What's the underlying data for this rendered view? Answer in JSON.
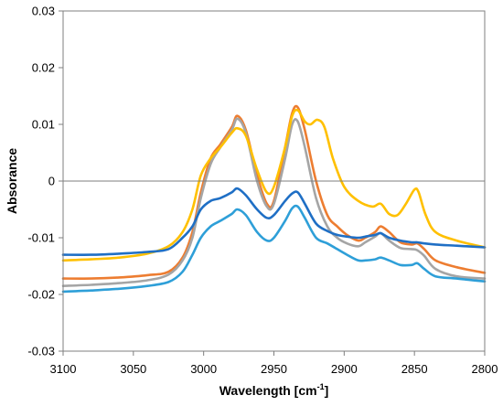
{
  "chart_data": {
    "type": "line",
    "xlabel": "Wavelength [cm",
    "xlabel_sup": "-1",
    "xlabel_end": "]",
    "ylabel": "Absorance",
    "xlim": [
      3100,
      2800
    ],
    "ylim": [
      -0.03,
      0.03
    ],
    "x_ticks": [
      3100,
      3050,
      3000,
      2950,
      2900,
      2850,
      2800
    ],
    "x_tick_labels": [
      "3100",
      "3050",
      "3000",
      "2950",
      "2900",
      "2850",
      "2800"
    ],
    "y_ticks": [
      0.03,
      0.02,
      0.01,
      0,
      -0.01,
      -0.02,
      -0.03
    ],
    "y_tick_labels": [
      "0.03",
      "0.02",
      "0.01",
      "0",
      "-0.01",
      "-0.02",
      "-0.03"
    ],
    "x_axis_reversed": true,
    "grid": false,
    "legend": "none",
    "series": [
      {
        "color": "#ED7D31",
        "points": [
          [
            3100,
            -0.0172
          ],
          [
            3080,
            -0.0172
          ],
          [
            3060,
            -0.017
          ],
          [
            3040,
            -0.0166
          ],
          [
            3025,
            -0.016
          ],
          [
            3015,
            -0.0135
          ],
          [
            3008,
            -0.009
          ],
          [
            3002,
            -0.002
          ],
          [
            2995,
            0.004
          ],
          [
            2988,
            0.0065
          ],
          [
            2980,
            0.0095
          ],
          [
            2976,
            0.0115
          ],
          [
            2970,
            0.009
          ],
          [
            2962,
            0.001
          ],
          [
            2955,
            -0.004
          ],
          [
            2950,
            -0.0035
          ],
          [
            2942,
            0.006
          ],
          [
            2937,
            0.012
          ],
          [
            2933,
            0.013
          ],
          [
            2928,
            0.009
          ],
          [
            2920,
            0.0
          ],
          [
            2912,
            -0.006
          ],
          [
            2905,
            -0.008
          ],
          [
            2898,
            -0.0095
          ],
          [
            2890,
            -0.0105
          ],
          [
            2885,
            -0.01
          ],
          [
            2878,
            -0.009
          ],
          [
            2874,
            -0.008
          ],
          [
            2868,
            -0.009
          ],
          [
            2860,
            -0.0108
          ],
          [
            2852,
            -0.0112
          ],
          [
            2848,
            -0.011
          ],
          [
            2843,
            -0.012
          ],
          [
            2835,
            -0.014
          ],
          [
            2820,
            -0.0152
          ],
          [
            2800,
            -0.0162
          ]
        ]
      },
      {
        "color": "#A5A5A5",
        "points": [
          [
            3100,
            -0.0185
          ],
          [
            3080,
            -0.0183
          ],
          [
            3060,
            -0.018
          ],
          [
            3040,
            -0.0175
          ],
          [
            3025,
            -0.0165
          ],
          [
            3015,
            -0.014
          ],
          [
            3008,
            -0.01
          ],
          [
            3002,
            -0.003
          ],
          [
            2995,
            0.003
          ],
          [
            2988,
            0.006
          ],
          [
            2980,
            0.009
          ],
          [
            2976,
            0.011
          ],
          [
            2970,
            0.0085
          ],
          [
            2962,
            0.0
          ],
          [
            2955,
            -0.0045
          ],
          [
            2950,
            -0.004
          ],
          [
            2942,
            0.004
          ],
          [
            2937,
            0.01
          ],
          [
            2933,
            0.0105
          ],
          [
            2928,
            0.006
          ],
          [
            2920,
            -0.003
          ],
          [
            2912,
            -0.008
          ],
          [
            2905,
            -0.01
          ],
          [
            2898,
            -0.011
          ],
          [
            2890,
            -0.0115
          ],
          [
            2885,
            -0.0108
          ],
          [
            2878,
            -0.0098
          ],
          [
            2874,
            -0.0092
          ],
          [
            2868,
            -0.0105
          ],
          [
            2860,
            -0.0118
          ],
          [
            2852,
            -0.012
          ],
          [
            2848,
            -0.0122
          ],
          [
            2843,
            -0.0132
          ],
          [
            2835,
            -0.0155
          ],
          [
            2820,
            -0.0168
          ],
          [
            2800,
            -0.0172
          ]
        ]
      },
      {
        "color": "#FFC000",
        "points": [
          [
            3100,
            -0.014
          ],
          [
            3080,
            -0.0138
          ],
          [
            3060,
            -0.0135
          ],
          [
            3040,
            -0.0128
          ],
          [
            3025,
            -0.0115
          ],
          [
            3015,
            -0.009
          ],
          [
            3008,
            -0.005
          ],
          [
            3002,
            0.001
          ],
          [
            2995,
            0.004
          ],
          [
            2988,
            0.006
          ],
          [
            2980,
            0.0085
          ],
          [
            2976,
            0.0093
          ],
          [
            2970,
            0.008
          ],
          [
            2962,
            0.002
          ],
          [
            2955,
            -0.002
          ],
          [
            2950,
            -0.001
          ],
          [
            2942,
            0.006
          ],
          [
            2937,
            0.0115
          ],
          [
            2933,
            0.0125
          ],
          [
            2928,
            0.0105
          ],
          [
            2924,
            0.01
          ],
          [
            2919,
            0.0108
          ],
          [
            2914,
            0.0095
          ],
          [
            2908,
            0.004
          ],
          [
            2900,
            -0.001
          ],
          [
            2890,
            -0.0035
          ],
          [
            2880,
            -0.0045
          ],
          [
            2874,
            -0.004
          ],
          [
            2868,
            -0.0058
          ],
          [
            2862,
            -0.006
          ],
          [
            2856,
            -0.004
          ],
          [
            2850,
            -0.0015
          ],
          [
            2847,
            -0.002
          ],
          [
            2842,
            -0.006
          ],
          [
            2835,
            -0.009
          ],
          [
            2820,
            -0.0105
          ],
          [
            2800,
            -0.0117
          ]
        ]
      },
      {
        "color": "#1F6FC5",
        "points": [
          [
            3100,
            -0.013
          ],
          [
            3080,
            -0.013
          ],
          [
            3060,
            -0.0128
          ],
          [
            3040,
            -0.0125
          ],
          [
            3025,
            -0.012
          ],
          [
            3015,
            -0.01
          ],
          [
            3008,
            -0.008
          ],
          [
            3002,
            -0.005
          ],
          [
            2995,
            -0.0035
          ],
          [
            2988,
            -0.003
          ],
          [
            2980,
            -0.002
          ],
          [
            2976,
            -0.0013
          ],
          [
            2970,
            -0.0025
          ],
          [
            2962,
            -0.005
          ],
          [
            2955,
            -0.0065
          ],
          [
            2950,
            -0.006
          ],
          [
            2942,
            -0.0035
          ],
          [
            2937,
            -0.0022
          ],
          [
            2933,
            -0.002
          ],
          [
            2928,
            -0.004
          ],
          [
            2920,
            -0.0075
          ],
          [
            2912,
            -0.0088
          ],
          [
            2905,
            -0.0095
          ],
          [
            2898,
            -0.0098
          ],
          [
            2890,
            -0.01
          ],
          [
            2885,
            -0.0098
          ],
          [
            2878,
            -0.0095
          ],
          [
            2874,
            -0.0092
          ],
          [
            2868,
            -0.01
          ],
          [
            2860,
            -0.0105
          ],
          [
            2852,
            -0.0108
          ],
          [
            2848,
            -0.0108
          ],
          [
            2843,
            -0.011
          ],
          [
            2835,
            -0.0112
          ],
          [
            2820,
            -0.0114
          ],
          [
            2800,
            -0.0117
          ]
        ]
      },
      {
        "color": "#2E9FD8",
        "points": [
          [
            3100,
            -0.0195
          ],
          [
            3080,
            -0.0193
          ],
          [
            3060,
            -0.019
          ],
          [
            3040,
            -0.0185
          ],
          [
            3025,
            -0.0178
          ],
          [
            3015,
            -0.016
          ],
          [
            3008,
            -0.013
          ],
          [
            3002,
            -0.01
          ],
          [
            2995,
            -0.008
          ],
          [
            2988,
            -0.007
          ],
          [
            2980,
            -0.0058
          ],
          [
            2976,
            -0.005
          ],
          [
            2970,
            -0.006
          ],
          [
            2962,
            -0.009
          ],
          [
            2955,
            -0.0105
          ],
          [
            2950,
            -0.01
          ],
          [
            2942,
            -0.007
          ],
          [
            2937,
            -0.0048
          ],
          [
            2933,
            -0.0045
          ],
          [
            2928,
            -0.0065
          ],
          [
            2920,
            -0.01
          ],
          [
            2912,
            -0.011
          ],
          [
            2905,
            -0.012
          ],
          [
            2898,
            -0.013
          ],
          [
            2890,
            -0.014
          ],
          [
            2885,
            -0.014
          ],
          [
            2878,
            -0.0138
          ],
          [
            2874,
            -0.0135
          ],
          [
            2868,
            -0.014
          ],
          [
            2860,
            -0.0148
          ],
          [
            2852,
            -0.0148
          ],
          [
            2848,
            -0.0145
          ],
          [
            2843,
            -0.0155
          ],
          [
            2835,
            -0.0168
          ],
          [
            2820,
            -0.0172
          ],
          [
            2800,
            -0.0177
          ]
        ]
      }
    ]
  }
}
